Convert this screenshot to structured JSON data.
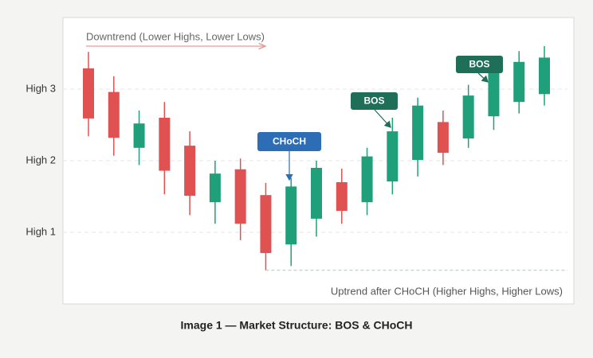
{
  "chart_data": {
    "type": "candlestick",
    "caption": "Image 1 — Market Structure: BOS & CHoCH",
    "ylim": [
      0,
      4
    ],
    "yticks": [
      {
        "value": 1,
        "label": "High 1"
      },
      {
        "value": 2,
        "label": "High 2"
      },
      {
        "value": 3,
        "label": "High 3"
      }
    ],
    "grid": true,
    "up_color": "#1fa07a",
    "down_color": "#e05252",
    "open": [
      3.29,
      2.96,
      2.18,
      2.6,
      2.21,
      1.42,
      1.88,
      1.52,
      0.83,
      1.19,
      1.7,
      1.42,
      1.71,
      2.01,
      2.54,
      2.31,
      2.62,
      2.82,
      2.93
    ],
    "high": [
      3.52,
      3.18,
      2.7,
      2.82,
      2.41,
      2.0,
      2.03,
      1.69,
      1.76,
      2.0,
      1.89,
      2.18,
      2.6,
      2.88,
      2.7,
      3.06,
      3.4,
      3.53,
      3.6
    ],
    "low": [
      2.34,
      2.07,
      1.94,
      1.53,
      1.24,
      1.12,
      0.89,
      0.47,
      0.53,
      0.94,
      1.12,
      1.24,
      1.53,
      1.78,
      1.94,
      2.18,
      2.43,
      2.66,
      2.77
    ],
    "close": [
      2.59,
      2.32,
      2.52,
      1.86,
      1.51,
      1.82,
      1.12,
      0.71,
      1.64,
      1.9,
      1.3,
      2.06,
      2.41,
      2.77,
      2.11,
      2.91,
      3.24,
      3.38,
      3.44
    ],
    "annotations": {
      "downtrend": "Downtrend (Lower Highs, Lower Lows)",
      "choch": "CHoCH",
      "bos": [
        "BOS",
        "BOS"
      ],
      "uptrend": "Uptrend after CHoCH (Higher Highs, Higher Lows)"
    }
  }
}
